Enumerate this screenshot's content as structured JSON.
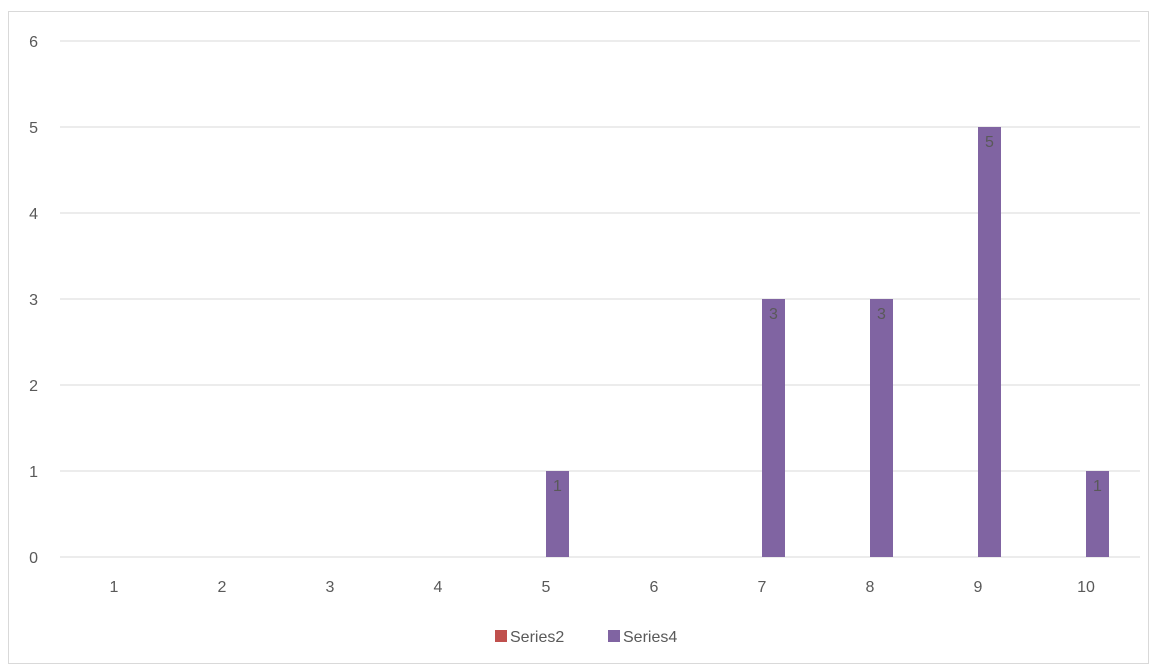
{
  "chart_data": {
    "type": "bar",
    "title": "",
    "xlabel": "",
    "ylabel": "",
    "categories": [
      "1",
      "2",
      "3",
      "4",
      "5",
      "6",
      "7",
      "8",
      "9",
      "10"
    ],
    "series": [
      {
        "name": "Series2",
        "color": "#c0504d",
        "values": [
          0,
          0,
          0,
          0,
          0,
          0,
          0,
          0,
          0,
          0
        ]
      },
      {
        "name": "Series4",
        "color": "#8064a2",
        "values": [
          0,
          0,
          0,
          0,
          1,
          0,
          3,
          3,
          5,
          1
        ]
      }
    ],
    "ylim": [
      0,
      6
    ],
    "yticks": [
      "0",
      "1",
      "2",
      "3",
      "4",
      "5",
      "6"
    ],
    "grid": true,
    "legend_position": "bottom",
    "data_labels": true
  }
}
